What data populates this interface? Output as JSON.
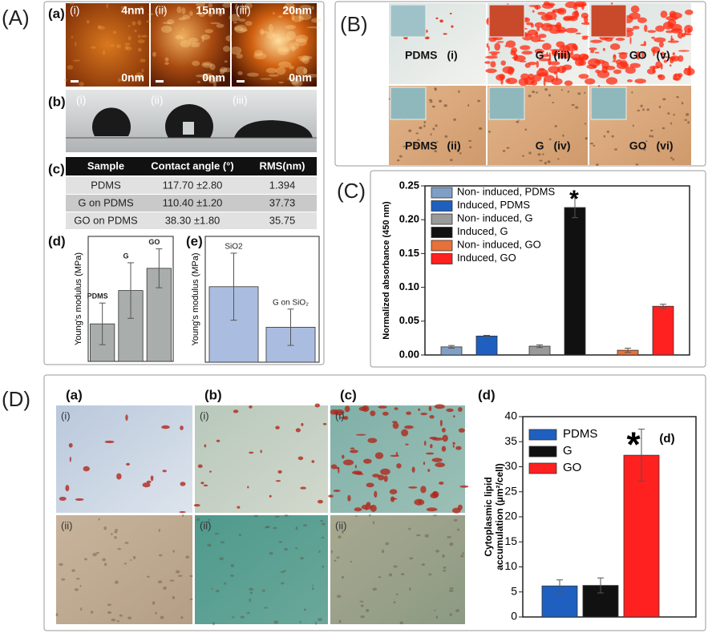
{
  "panel_labels": [
    "(A)",
    "(B)",
    "(C)",
    "(D)"
  ],
  "panel_a": {
    "sub_labels": [
      "(a)",
      "(b)",
      "(c)",
      "(d)",
      "(e)"
    ],
    "afm": [
      {
        "index": "(i)",
        "max": "4nm",
        "min": "0nm"
      },
      {
        "index": "(ii)",
        "max": "15nm",
        "min": "0nm"
      },
      {
        "index": "(iii)",
        "max": "20nm",
        "min": "0nm"
      }
    ],
    "drops": [
      "(i)",
      "(ii)",
      "(iii)"
    ],
    "table": {
      "header": [
        "Sample",
        "Contact angle (°)",
        "RMS(nm)"
      ],
      "rows": [
        [
          "PDMS",
          "117.70 ±2.80",
          "1.394"
        ],
        [
          "G on PDMS",
          "110.40 ±1.20",
          "37.73"
        ],
        [
          "GO on PDMS",
          "38.30 ±1.80",
          "35.75"
        ]
      ]
    }
  },
  "panel_b": {
    "images": [
      {
        "sample": "PDMS",
        "index": "(i)"
      },
      {
        "sample": "G",
        "index": "(iii)"
      },
      {
        "sample": "GO",
        "index": "(v)"
      },
      {
        "sample": "PDMS",
        "index": "(ii)"
      },
      {
        "sample": "G",
        "index": "(iv)"
      },
      {
        "sample": "GO",
        "index": "(vi)"
      }
    ]
  },
  "panel_d": {
    "sub_labels": [
      "(a)",
      "(b)",
      "(c)",
      "(d)"
    ],
    "rows": [
      "(i)",
      "(ii)"
    ]
  },
  "chart_data": [
    {
      "type": "bar",
      "ylabel": "Young's modulus (MPa)",
      "categories": [
        "PDMS",
        "G",
        "GO"
      ],
      "values": [
        2.7,
        5.1,
        6.7
      ],
      "errors": [
        1.5,
        2.0,
        1.4
      ],
      "color": "#a9adac",
      "ylim": [
        0,
        9
      ]
    },
    {
      "type": "bar",
      "ylabel": "Young's modulus (MPa)",
      "categories": [
        "SiO2",
        "G on SiO₂"
      ],
      "values": [
        5.4,
        2.5
      ],
      "errors": [
        2.4,
        1.3
      ],
      "color": "#aabde0",
      "ylim": [
        0,
        9
      ]
    },
    {
      "type": "bar",
      "ylabel": "Normalized absorbance (450 nm)",
      "annotation": "*",
      "ylim": [
        0,
        0.25
      ],
      "yticks": [
        {
          "value": 0,
          "label": "0.00"
        },
        {
          "value": 0.05,
          "label": "0.05"
        },
        {
          "value": 0.1,
          "label": "0.10"
        },
        {
          "value": 0.15,
          "label": "0.15"
        },
        {
          "value": 0.2,
          "label": "0.20"
        },
        {
          "value": 0.25,
          "label": "0.25"
        }
      ],
      "series": [
        {
          "name": "Non- induced, PDMS",
          "color": "#7f9fc6",
          "values": [
            0.012
          ],
          "errors": [
            0.002
          ]
        },
        {
          "name": "Induced, PDMS",
          "color": "#1f5fbf",
          "values": [
            0.028
          ],
          "errors": [
            0.001
          ]
        },
        {
          "name": "Non- induced, G",
          "color": "#9a9a9a",
          "values": [
            0.013
          ],
          "errors": [
            0.002
          ]
        },
        {
          "name": "Induced, G",
          "color": "#111111",
          "values": [
            0.218
          ],
          "errors": [
            0.015
          ]
        },
        {
          "name": "Non- induced, GO",
          "color": "#e8703a",
          "values": [
            0.007
          ],
          "errors": [
            0.003
          ]
        },
        {
          "name": "Induced, GO",
          "color": "#ff2020",
          "values": [
            0.072
          ],
          "errors": [
            0.003
          ]
        }
      ]
    },
    {
      "type": "bar",
      "ylabel": [
        "Cytoplasmic lipid",
        "accumulation (µm²/cell)"
      ],
      "annotation": "*",
      "subtitle": "(d)",
      "ylim": [
        0,
        40
      ],
      "yticks": [
        0,
        5,
        10,
        15,
        20,
        25,
        30,
        35,
        40
      ],
      "series": [
        {
          "name": "PDMS",
          "color": "#1f5fbf",
          "values": [
            6.2
          ],
          "errors": [
            1.2
          ]
        },
        {
          "name": "G",
          "color": "#111111",
          "values": [
            6.3
          ],
          "errors": [
            1.5
          ]
        },
        {
          "name": "GO",
          "color": "#ff2020",
          "values": [
            32.3
          ],
          "errors": [
            5.2
          ]
        }
      ]
    }
  ]
}
